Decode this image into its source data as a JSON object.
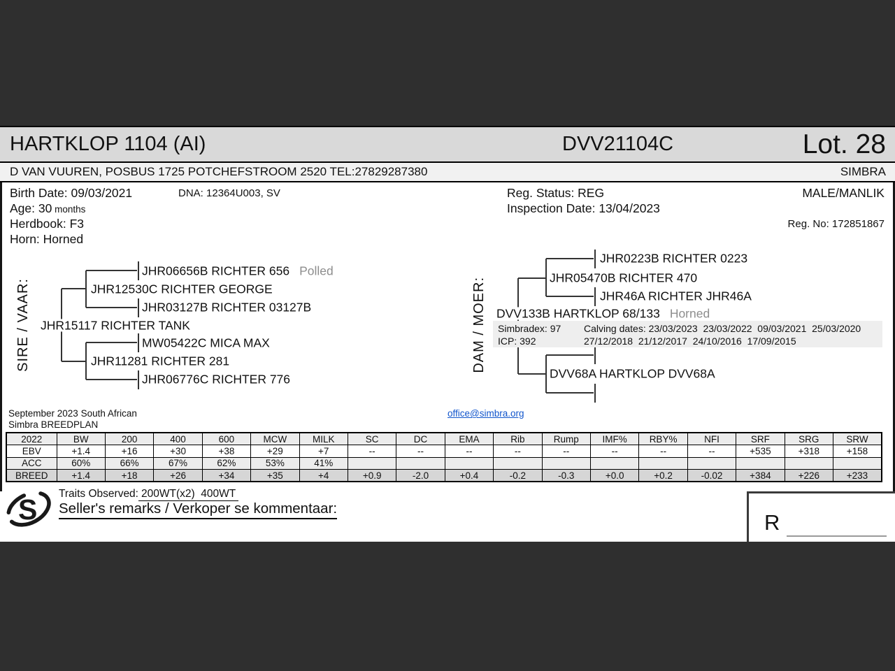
{
  "header": {
    "title": "HARTKLOP 1104 (AI)",
    "animal_id": "DVV21104C",
    "lot": "Lot. 28",
    "owner": "D VAN VUUREN, POSBUS 1725 POTCHEFSTROOM 2520 TEL:27829287380",
    "breed": "SIMBRA"
  },
  "details": {
    "birth_date": "Birth Date: 09/03/2021",
    "dna": "DNA: 12364U003, SV",
    "age_label": "Age: 30",
    "age_unit": " months",
    "herdbook": "Herdbook: F3",
    "horn": "Horn: Horned",
    "reg_status": "Reg. Status: REG",
    "inspection_date": "Inspection Date: 13/04/2023",
    "sex": "MALE/MANLIK",
    "reg_no": "Reg. No: 172851867"
  },
  "pedigree": {
    "sire_label": "SIRE / VAAR:",
    "dam_label": "DAM / MOER:",
    "sire": "JHR15117 RICHTER TANK",
    "sire_sire": "JHR12530C RICHTER GEORGE",
    "sire_sire_sire": "JHR06656B RICHTER 656",
    "sire_sire_sire_note": "Polled",
    "sire_sire_dam": "JHR03127B RICHTER 03127B",
    "sire_dam": "JHR11281 RICHTER 281",
    "sire_dam_sire": "MW05422C MICA MAX",
    "sire_dam_dam": "JHR06776C RICHTER 776",
    "dam": "DVV133B HARTKLOP 68/133",
    "dam_note": "Horned",
    "dam_sire": "JHR05470B RICHTER 470",
    "dam_sire_sire": "JHR0223B RICHTER 0223",
    "dam_sire_dam": "JHR46A RICHTER JHR46A",
    "dam_dam": "DVV68A HARTKLOP DVV68A",
    "dam_info": {
      "simbradex": "Simbradex: 97",
      "icp": "ICP: 392",
      "calving_line1": "Calving dates: 23/03/2023  23/03/2022  09/03/2021  25/03/2020",
      "calving_line2": "27/12/2018  21/12/2017  24/10/2016  17/09/2015"
    }
  },
  "breedplan": {
    "line1": "September 2023 South African",
    "line2": "Simbra BREEDPLAN",
    "email": "office@simbra.org"
  },
  "ebv_table": {
    "columns": [
      "2022",
      "BW",
      "200",
      "400",
      "600",
      "MCW",
      "MILK",
      "SC",
      "DC",
      "EMA",
      "Rib",
      "Rump",
      "IMF%",
      "RBY%",
      "NFI",
      "SRF",
      "SRG",
      "SRW"
    ],
    "rows": [
      {
        "label": "EBV",
        "values": [
          "+1.4",
          "+16",
          "+30",
          "+38",
          "+29",
          "+7",
          "--",
          "--",
          "--",
          "--",
          "--",
          "--",
          "--",
          "--",
          "+535",
          "+318",
          "+158"
        ]
      },
      {
        "label": "ACC",
        "values": [
          "60%",
          "66%",
          "67%",
          "62%",
          "53%",
          "41%",
          "",
          "",
          "",
          "",
          "",
          "",
          "",
          "",
          "",
          "",
          ""
        ]
      },
      {
        "label": "BREED",
        "values": [
          "+1.4",
          "+18",
          "+26",
          "+34",
          "+35",
          "+4",
          "+0.9",
          "-2.0",
          "+0.4",
          "-0.2",
          "-0.3",
          "+0.0",
          "+0.2",
          "-0.02",
          "+384",
          "+226",
          "+233"
        ]
      }
    ]
  },
  "footer": {
    "traits_label": "Traits Observed:",
    "traits_value": "200WT(x2)  400WT",
    "remarks": "Seller's remarks / Verkoper se kommentaar:",
    "price_prefix": "R"
  },
  "colors": {
    "background": "#2f2f2f",
    "titlebar": "#d9d9d9",
    "ownerbar": "#f1f1f1",
    "band": "#eeeeee",
    "breed_row": "#d6d6d6",
    "link": "#1155cc"
  }
}
